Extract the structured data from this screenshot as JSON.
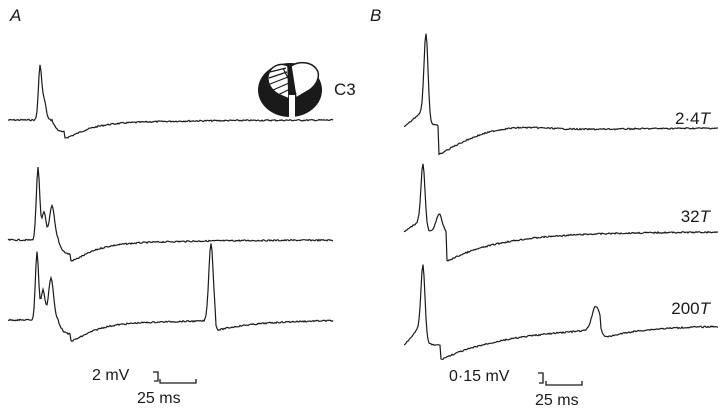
{
  "figure": {
    "panels": [
      {
        "label": "A",
        "section_label": "C3",
        "scale": {
          "amplitude": "2 mV",
          "time": "25 ms"
        },
        "traces": [
          {},
          {},
          {}
        ]
      },
      {
        "label": "B",
        "scale": {
          "amplitude": "0·15 mV",
          "time": "25 ms"
        },
        "traces": [
          {
            "stim_value": "2·4",
            "stim_unit": "T"
          },
          {
            "stim_value": "32",
            "stim_unit": "T"
          },
          {
            "stim_value": "200",
            "stim_unit": "T"
          }
        ]
      }
    ],
    "colors": {
      "ink": "#1a1a1a",
      "background": "#ffffff"
    }
  }
}
